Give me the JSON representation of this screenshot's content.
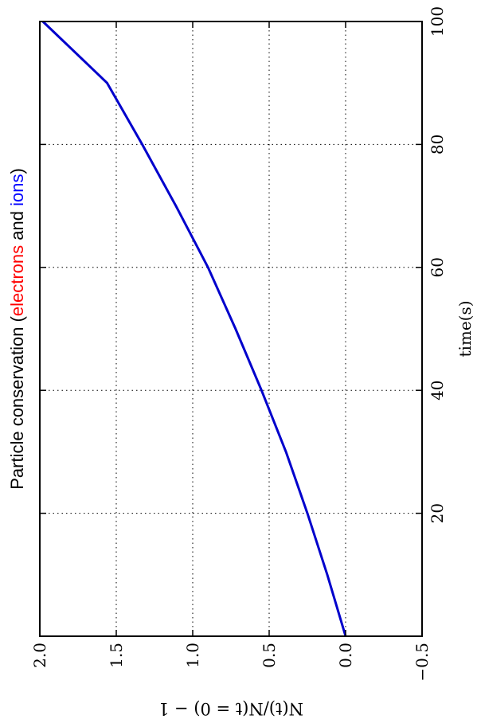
{
  "chart_data": {
    "type": "line",
    "orientation": "rotated-90",
    "title": {
      "prefix": "Particle conservation (",
      "part1": "electrons",
      "middle": " and ",
      "part2": "ions",
      "suffix": ")",
      "part1_color": "#ff0000",
      "part2_color": "#0000ff"
    },
    "xlabel": "time(s)",
    "ylabel": "N(t)/N(t = 0) − 1",
    "xlim": [
      0,
      100
    ],
    "ylim": [
      -0.5,
      2.0
    ],
    "xticks": [
      20,
      40,
      60,
      80,
      100
    ],
    "xtick_labels": [
      "20",
      "40",
      "60",
      "80",
      "100"
    ],
    "yticks": [
      -0.5,
      0.0,
      0.5,
      1.0,
      1.5,
      2.0
    ],
    "ytick_labels": [
      "−0.5",
      "0.0",
      "0.5",
      "1.0",
      "1.5",
      "2.0"
    ],
    "grid": true,
    "series": [
      {
        "color": "#0000cc",
        "x": [
          0,
          10,
          20,
          30,
          40,
          50,
          60,
          70,
          80,
          90,
          100
        ],
        "y": [
          0.0,
          0.12,
          0.25,
          0.39,
          0.55,
          0.72,
          0.9,
          1.11,
          1.33,
          1.56,
          1.98
        ]
      }
    ]
  }
}
